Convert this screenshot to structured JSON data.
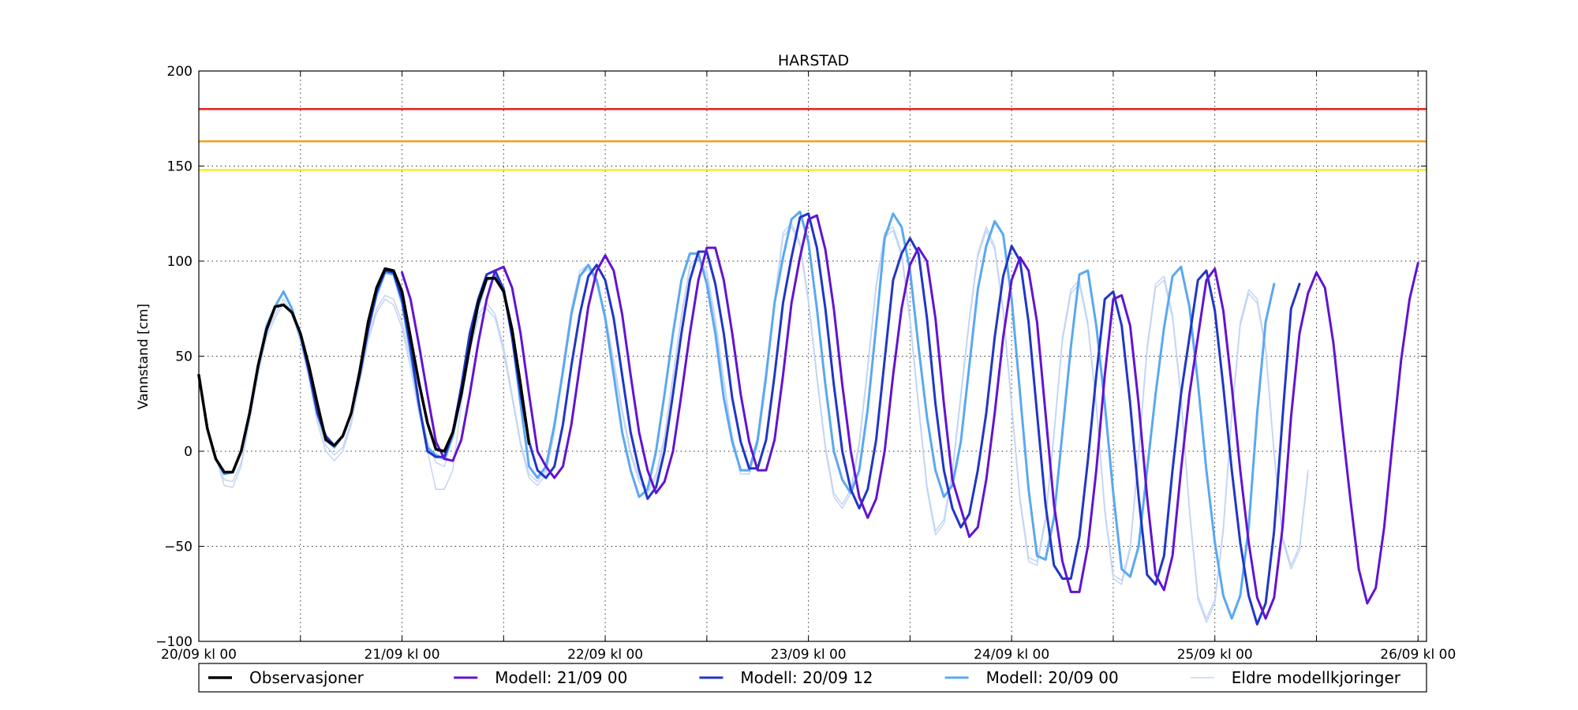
{
  "chart_data": {
    "type": "line",
    "title": "HARSTAD",
    "ylabel": "Vannstand [cm]",
    "xlabel": "",
    "xlim_hours": [
      0,
      145
    ],
    "ylim": [
      -100,
      200
    ],
    "yticks": [
      -100,
      -50,
      0,
      50,
      100,
      150,
      200
    ],
    "ytick_labels": [
      "−100",
      "−50",
      "0",
      "50",
      "100",
      "150",
      "200"
    ],
    "xticks": [
      {
        "hour": 0,
        "label": "20/09 kl 00"
      },
      {
        "hour": 12,
        "label": ""
      },
      {
        "hour": 24,
        "label": "21/09 kl 00"
      },
      {
        "hour": 36,
        "label": ""
      },
      {
        "hour": 48,
        "label": "22/09 kl 00"
      },
      {
        "hour": 60,
        "label": ""
      },
      {
        "hour": 72,
        "label": "23/09 kl 00"
      },
      {
        "hour": 84,
        "label": ""
      },
      {
        "hour": 96,
        "label": "24/09 kl 00"
      },
      {
        "hour": 108,
        "label": ""
      },
      {
        "hour": 120,
        "label": "25/09 kl 00"
      },
      {
        "hour": 132,
        "label": ""
      },
      {
        "hour": 144,
        "label": "26/09 kl 00"
      }
    ],
    "grid": true,
    "thresholds": [
      {
        "value": 180,
        "color": "#e8211b"
      },
      {
        "value": 163,
        "color": "#f89c12"
      },
      {
        "value": 148,
        "color": "#f2f21a"
      }
    ],
    "legend_position": "below",
    "series": [
      {
        "name": "Eldre modellkjoringer",
        "color": "#c3d5f4",
        "width": 1.5,
        "x_start_hour": 0,
        "values": [
          38,
          12,
          -4,
          -15,
          -16,
          -6,
          18,
          42,
          62,
          72,
          80,
          73,
          60,
          40,
          18,
          3,
          -2,
          2,
          16,
          38,
          60,
          75,
          82,
          80,
          68,
          48,
          25,
          5,
          -6,
          -8,
          8,
          30,
          55,
          72,
          78,
          72,
          55,
          30,
          5,
          -12,
          -16,
          -10,
          12,
          45,
          75,
          95,
          98,
          90,
          72,
          48,
          22,
          0,
          -14,
          -20,
          -12,
          8,
          40,
          72,
          98,
          103,
          95,
          70,
          38,
          8,
          -10,
          -10,
          5,
          38,
          80,
          115,
          120,
          110,
          80,
          40,
          3,
          -22,
          -28,
          -20,
          5,
          45,
          88,
          115,
          118,
          105,
          70,
          25,
          -18,
          -42,
          -36,
          -10,
          30,
          70,
          104,
          118,
          108,
          75,
          25,
          -25,
          -56,
          -58,
          -35,
          10,
          60,
          85,
          90,
          68,
          25,
          -30,
          -65,
          -68,
          -50,
          0,
          55,
          88,
          92,
          72,
          30,
          -30,
          -76,
          -88,
          -78,
          -40,
          20,
          68,
          85,
          80,
          55,
          0,
          -45,
          -60,
          -50,
          -10
        ]
      },
      {
        "name": "Eldre modellkjoringer",
        "color": "#c3d5f4",
        "width": 1.5,
        "x_start_hour": 0,
        "values": [
          38,
          12,
          -3,
          -18,
          -19,
          -8,
          16,
          40,
          60,
          70,
          78,
          72,
          58,
          38,
          15,
          0,
          -5,
          0,
          14,
          36,
          58,
          73,
          80,
          77,
          65,
          44,
          20,
          0,
          -20,
          -20,
          -10,
          25,
          52,
          70,
          75,
          70,
          52,
          28,
          3,
          -14,
          -18,
          -12,
          10,
          42,
          72,
          92,
          96,
          88,
          70,
          45,
          20,
          -2,
          -16,
          -22,
          -14,
          6,
          38,
          70,
          96,
          101,
          93,
          68,
          36,
          6,
          -12,
          -12,
          3,
          36,
          78,
          113,
          118,
          108,
          78,
          38,
          1,
          -24,
          -30,
          -22,
          3,
          43,
          86,
          113,
          116,
          103,
          68,
          23,
          -20,
          -44,
          -38,
          -12,
          28,
          68,
          102,
          116,
          106,
          73,
          23,
          -27,
          -58,
          -60,
          -37,
          8,
          58,
          83,
          88,
          66,
          23,
          -32,
          -67,
          -70,
          -52,
          -2,
          53,
          86,
          90,
          70,
          28,
          -32,
          -78,
          -90,
          -80,
          -42,
          18,
          66,
          83,
          78,
          53,
          -2,
          -47,
          -62,
          -52,
          -12
        ]
      },
      {
        "name": "Modell: 20/09 00",
        "color": "#5aa8f0",
        "width": 3,
        "x_start_hour": 0,
        "values": [
          40,
          12,
          -4,
          -12,
          -11,
          0,
          20,
          45,
          66,
          76,
          84,
          75,
          60,
          42,
          20,
          6,
          2,
          8,
          20,
          40,
          64,
          82,
          94,
          93,
          78,
          52,
          24,
          2,
          -2,
          -4,
          8,
          30,
          56,
          76,
          90,
          92,
          86,
          60,
          25,
          -8,
          -14,
          -8,
          14,
          42,
          72,
          92,
          98,
          90,
          70,
          40,
          10,
          -10,
          -24,
          -20,
          0,
          30,
          62,
          90,
          104,
          104,
          88,
          62,
          28,
          5,
          -10,
          -10,
          6,
          40,
          78,
          102,
          122,
          126,
          110,
          75,
          35,
          0,
          -15,
          -22,
          -10,
          22,
          66,
          112,
          125,
          118,
          95,
          55,
          18,
          -10,
          -24,
          -18,
          5,
          45,
          85,
          108,
          121,
          114,
          80,
          30,
          -20,
          -55,
          -57,
          -35,
          10,
          55,
          93,
          95,
          66,
          25,
          -22,
          -62,
          -66,
          -50,
          -10,
          30,
          65,
          92,
          97,
          76,
          36,
          -10,
          -48,
          -76,
          -88,
          -76,
          -40,
          20,
          68,
          88
        ]
      },
      {
        "name": "Modell: 20/09 12",
        "color": "#2136c6",
        "width": 3,
        "x_start_hour": 12,
        "values": [
          62,
          42,
          20,
          8,
          3,
          8,
          20,
          40,
          64,
          84,
          95,
          94,
          80,
          55,
          25,
          0,
          -3,
          -3,
          10,
          34,
          62,
          80,
          93,
          95,
          85,
          60,
          30,
          5,
          -10,
          -14,
          -8,
          14,
          45,
          72,
          92,
          98,
          90,
          70,
          40,
          10,
          -10,
          -25,
          -19,
          0,
          30,
          62,
          90,
          105,
          105,
          88,
          62,
          28,
          5,
          -9,
          -9,
          6,
          40,
          78,
          102,
          123,
          125,
          107,
          75,
          35,
          0,
          -20,
          -30,
          -20,
          6,
          48,
          90,
          104,
          112,
          104,
          70,
          25,
          -10,
          -30,
          -40,
          -33,
          -10,
          20,
          60,
          92,
          108,
          100,
          68,
          20,
          -28,
          -60,
          -67,
          -67,
          -45,
          -5,
          40,
          80,
          84,
          66,
          25,
          -24,
          -65,
          -70,
          -55,
          -10,
          30,
          60,
          90,
          95,
          74,
          34,
          -10,
          -48,
          -76,
          -91,
          -80,
          -42,
          18,
          75,
          88
        ]
      },
      {
        "name": "Modell: 21/09 00",
        "color": "#6313d0",
        "width": 3,
        "x_start_hour": 24,
        "values": [
          94,
          80,
          56,
          30,
          5,
          -4,
          -5,
          6,
          30,
          57,
          80,
          95,
          97,
          86,
          62,
          30,
          0,
          -8,
          -14,
          -8,
          14,
          45,
          76,
          95,
          103,
          95,
          72,
          40,
          10,
          -10,
          -22,
          -16,
          0,
          30,
          62,
          90,
          107,
          107,
          90,
          62,
          30,
          5,
          -10,
          -10,
          6,
          40,
          78,
          102,
          122,
          124,
          106,
          75,
          35,
          0,
          -24,
          -35,
          -25,
          0,
          40,
          75,
          98,
          107,
          100,
          70,
          25,
          -15,
          -30,
          -45,
          -40,
          -15,
          20,
          60,
          90,
          102,
          95,
          68,
          20,
          -28,
          -58,
          -74,
          -74,
          -50,
          -10,
          40,
          80,
          82,
          66,
          25,
          -24,
          -65,
          -73,
          -55,
          -10,
          30,
          60,
          90,
          96,
          74,
          34,
          -10,
          -48,
          -77,
          -88,
          -77,
          -40,
          18,
          62,
          83,
          94,
          86,
          57,
          15,
          -25,
          -62,
          -80,
          -72,
          -40,
          5,
          48,
          80,
          99
        ]
      },
      {
        "name": "Observasjoner",
        "color": "#000000",
        "width": 3.5,
        "x_start_hour": 0,
        "values": [
          40,
          12,
          -4,
          -11,
          -11,
          0,
          20,
          45,
          64,
          76,
          77,
          73,
          62,
          45,
          25,
          6,
          3,
          8,
          20,
          42,
          68,
          86,
          96,
          95,
          84,
          60,
          36,
          15,
          1,
          0,
          10,
          30,
          55,
          78,
          91,
          91,
          84,
          64,
          35,
          4
        ]
      }
    ],
    "legend": [
      {
        "label": "Observasjoner",
        "color": "#000000",
        "width": 3.5
      },
      {
        "label": "Modell: 21/09 00",
        "color": "#6313d0",
        "width": 3
      },
      {
        "label": "Modell: 20/09 12",
        "color": "#2136c6",
        "width": 3
      },
      {
        "label": "Modell: 20/09 00",
        "color": "#5aa8f0",
        "width": 3
      },
      {
        "label": "Eldre modellkjoringer",
        "color": "#c3d5f4",
        "width": 1.5
      }
    ]
  }
}
